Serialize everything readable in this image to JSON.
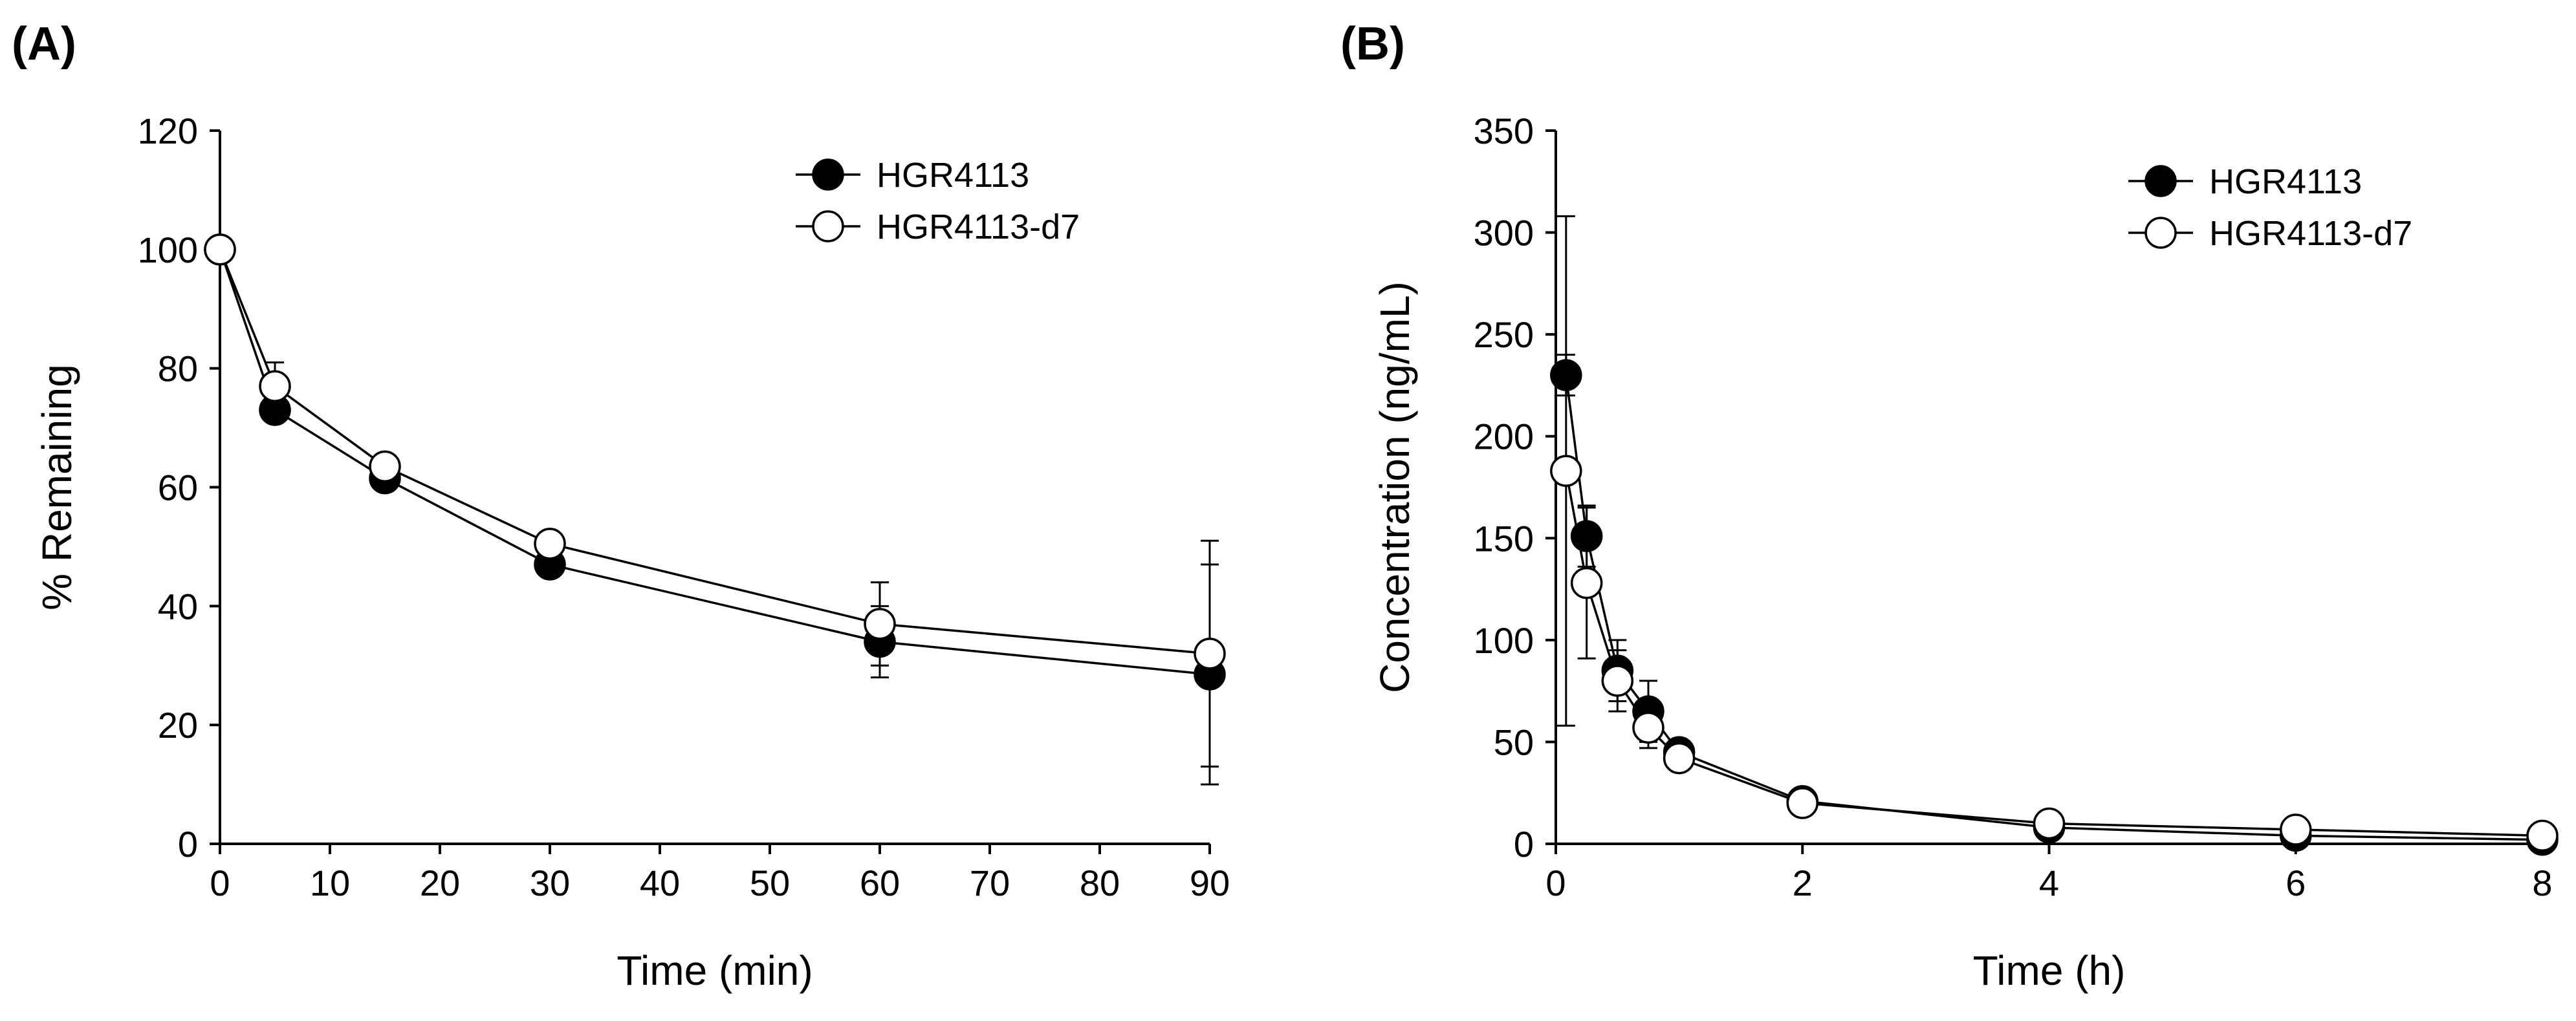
{
  "chart_data": [
    {
      "panel": "(A)",
      "type": "line",
      "xlabel": "Time (min)",
      "ylabel": "% Remaining",
      "xlim": [
        0,
        90
      ],
      "ylim": [
        0,
        120
      ],
      "xticks": [
        0,
        10,
        20,
        30,
        40,
        50,
        60,
        70,
        80,
        90
      ],
      "yticks": [
        0,
        20,
        40,
        60,
        80,
        100,
        120
      ],
      "legend_position": "top-right",
      "series": [
        {
          "name": "HGR4113",
          "marker": "filled-circle",
          "x": [
            0,
            5,
            15,
            30,
            60,
            90
          ],
          "y": [
            100,
            73,
            61.5,
            47,
            34,
            28.5
          ],
          "err": [
            0,
            2,
            1,
            1.5,
            6,
            18.5
          ]
        },
        {
          "name": "HGR4113-d7",
          "marker": "open-circle",
          "x": [
            0,
            5,
            15,
            30,
            60,
            90
          ],
          "y": [
            100,
            77,
            63.5,
            50.5,
            37,
            32
          ],
          "err": [
            0,
            4,
            1,
            1.5,
            7,
            19
          ]
        }
      ]
    },
    {
      "panel": "(B)",
      "type": "line",
      "xlabel": "Time (h)",
      "ylabel": "Concentration (ng/mL)",
      "xlim": [
        0,
        8
      ],
      "ylim": [
        0,
        350
      ],
      "xticks": [
        0,
        2,
        4,
        6,
        8
      ],
      "yticks": [
        0,
        50,
        100,
        150,
        200,
        250,
        300,
        350
      ],
      "legend_position": "top-right",
      "series": [
        {
          "name": "HGR4113",
          "marker": "filled-circle",
          "x": [
            0.083,
            0.25,
            0.5,
            0.75,
            1,
            2,
            4,
            6,
            8
          ],
          "y": [
            230,
            151,
            85,
            65,
            45,
            21,
            8,
            4,
            2
          ],
          "err": [
            10,
            15,
            15,
            15,
            5,
            2,
            2,
            1,
            1
          ]
        },
        {
          "name": "HGR4113-d7",
          "marker": "open-circle",
          "x": [
            0.083,
            0.25,
            0.5,
            0.75,
            1,
            2,
            4,
            6,
            8
          ],
          "y": [
            183,
            128,
            80,
            57,
            42,
            20,
            10,
            7,
            4
          ],
          "err": [
            125,
            37,
            15,
            10,
            5,
            2,
            2,
            1,
            1
          ]
        }
      ]
    }
  ]
}
